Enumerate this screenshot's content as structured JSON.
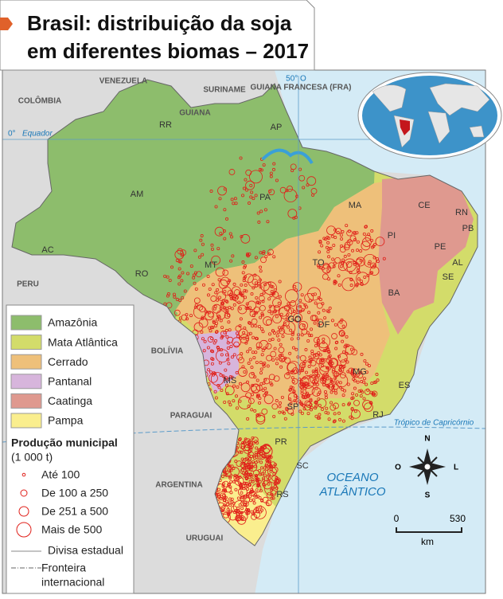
{
  "title": {
    "lines": [
      "Brasil: distribuição da soja",
      "em diferentes biomas – 2017"
    ]
  },
  "countries": [
    "VENEZUELA",
    "COLÔMBIA",
    "SURINAME",
    "GUIANA",
    "GUIANA FRANCESA (FRA)",
    "PERU",
    "BOLÍVIA",
    "PARAGUAI",
    "ARGENTINA",
    "URUGUAI"
  ],
  "states": [
    "RR",
    "AP",
    "AM",
    "PA",
    "MA",
    "CE",
    "RN",
    "PB",
    "PE",
    "AL",
    "SE",
    "PI",
    "TO",
    "BA",
    "AC",
    "RO",
    "MT",
    "GO",
    "DF",
    "MG",
    "ES",
    "MS",
    "SP",
    "RJ",
    "PR",
    "SC",
    "RS"
  ],
  "lines": {
    "equator": "0°",
    "equator_name": "Equador",
    "meridian": "50° O",
    "tropic": "Trópico de Capricórnio"
  },
  "ocean": [
    "OCEANO",
    "ATLÂNTICO"
  ],
  "compass": {
    "north": "N",
    "south": "S",
    "west": "O",
    "east": "L"
  },
  "scale": {
    "start": "0",
    "end": "530",
    "unit": "km"
  },
  "legend": {
    "biomes": [
      {
        "label": "Amazônia",
        "color": "#8dbd6c"
      },
      {
        "label": "Mata Atlântica",
        "color": "#d3dc6a"
      },
      {
        "label": "Cerrado",
        "color": "#eec07a"
      },
      {
        "label": "Pantanal",
        "color": "#d7b5dc"
      },
      {
        "label": "Caatinga",
        "color": "#df998f"
      },
      {
        "label": "Pampa",
        "color": "#faee8e"
      }
    ],
    "production_title": "Produção municipal",
    "production_unit": "(1 000 t)",
    "production": [
      "Até 100",
      "De 100 a 250",
      "De 251 a 500",
      "Mais de 500"
    ],
    "state_border": "Divisa estadual",
    "border": [
      "Fronteira",
      "internacional"
    ]
  }
}
